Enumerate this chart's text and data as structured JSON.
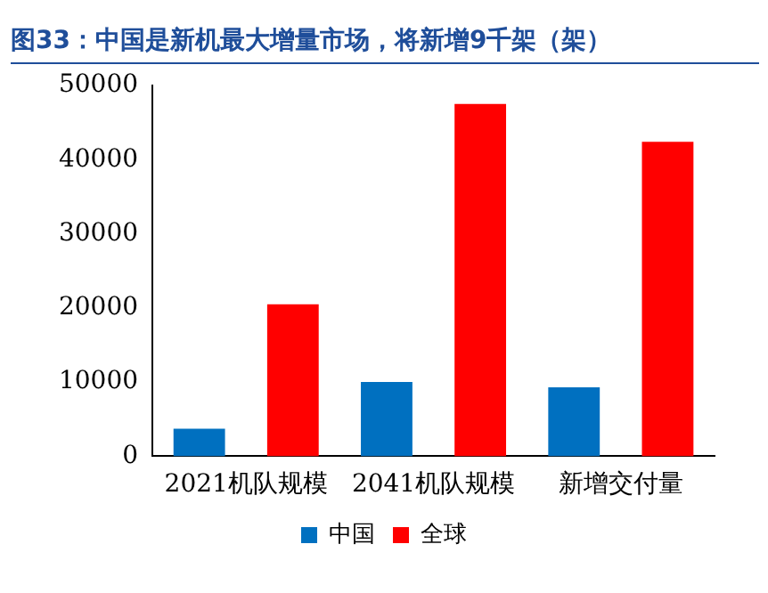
{
  "chart_data": {
    "type": "bar",
    "title": "图33：中国是新机最大增量市场，将新增9千架（架）",
    "categories": [
      "2021机队规模",
      "2041机队规模",
      "新增交付量"
    ],
    "series": [
      {
        "name": "中国",
        "color": "#0070c0",
        "values": [
          3700,
          10000,
          9300
        ]
      },
      {
        "name": "全球",
        "color": "#ff0000",
        "values": [
          20500,
          47500,
          42400
        ]
      }
    ],
    "ylim": [
      0,
      50000
    ],
    "yticks": [
      0,
      10000,
      20000,
      30000,
      40000,
      50000
    ],
    "grid": false,
    "legend": "bottom"
  }
}
